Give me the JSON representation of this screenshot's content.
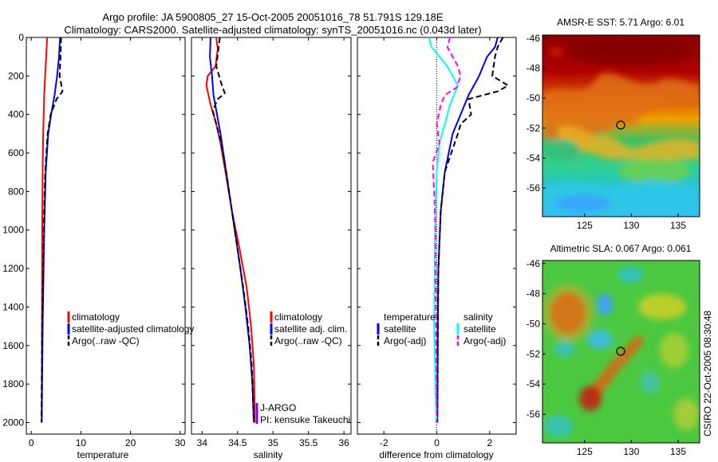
{
  "title": {
    "line1": "Argo profile: JA 5900805_27 15-Oct-2005 20051016_78 51.791S 129.18E",
    "line2": "Climatology: CARS2000. Satellite-adjusted climatology: synTS_20051016.nc (0.043d later)"
  },
  "chart_data": [
    {
      "type": "line",
      "xlabel": "temperature",
      "ylabel": "",
      "xlim": [
        -1,
        31
      ],
      "ylim": [
        2060,
        0
      ],
      "y_reversed": true,
      "xticks": [
        0,
        10,
        20,
        30
      ],
      "yticks": [
        0,
        200,
        400,
        600,
        800,
        1000,
        1200,
        1400,
        1600,
        1800,
        2000
      ],
      "legend": [
        "climatology",
        "satellite-adjusted climatology",
        "Argo(..raw -QC)"
      ],
      "series": [
        {
          "name": "climatology",
          "color": "#ff0000",
          "dash": "solid",
          "depth": [
            0,
            100,
            200,
            300,
            400,
            500,
            700,
            1000,
            1500,
            2000
          ],
          "values": [
            3.2,
            3.0,
            2.8,
            2.6,
            2.5,
            2.4,
            2.3,
            2.2,
            2.15,
            2.1
          ]
        },
        {
          "name": "satellite-adjusted climatology",
          "color": "#0000ff",
          "dash": "solid",
          "depth": [
            0,
            100,
            200,
            300,
            400,
            500,
            700,
            1000,
            1500,
            2000
          ],
          "values": [
            5.8,
            5.6,
            5.2,
            4.7,
            4.0,
            3.4,
            2.9,
            2.6,
            2.3,
            2.1
          ]
        },
        {
          "name": "Argo(..raw -QC)",
          "color": "#000000",
          "dash": "dashed",
          "depth": [
            0,
            100,
            200,
            280,
            320,
            400,
            500,
            700,
            1000,
            1500,
            2000
          ],
          "values": [
            6.0,
            5.9,
            5.7,
            6.3,
            5.1,
            3.9,
            3.3,
            2.8,
            2.5,
            2.2,
            2.05
          ]
        }
      ]
    },
    {
      "type": "line",
      "xlabel": "salinity",
      "ylabel": "",
      "xlim": [
        33.85,
        36.1
      ],
      "ylim": [
        2060,
        0
      ],
      "y_reversed": true,
      "xticks": [
        34,
        34.5,
        35,
        35.5,
        36
      ],
      "yticks": [
        0,
        200,
        400,
        600,
        800,
        1000,
        1200,
        1400,
        1600,
        1800,
        2000
      ],
      "legend": [
        "climatology",
        "satellite adj. clim.",
        "Argo(..raw -QC)"
      ],
      "series": [
        {
          "name": "climatology",
          "color": "#ff0000",
          "dash": "solid",
          "depth": [
            0,
            60,
            150,
            200,
            250,
            350,
            450,
            550,
            700,
            900,
            1100,
            1300,
            1500,
            1700,
            1900,
            2000
          ],
          "values": [
            34.2,
            34.22,
            34.19,
            34.08,
            34.06,
            34.12,
            34.2,
            34.26,
            34.33,
            34.42,
            34.53,
            34.63,
            34.69,
            34.73,
            34.74,
            34.74
          ]
        },
        {
          "name": "satellite adj. clim.",
          "color": "#0000ff",
          "dash": "solid",
          "depth": [
            0,
            100,
            200,
            300,
            400,
            500,
            600,
            800,
            1000,
            1200,
            1400,
            1600,
            1800,
            2000
          ],
          "values": [
            34.12,
            34.11,
            34.14,
            34.16,
            34.21,
            34.26,
            34.3,
            34.38,
            34.46,
            34.54,
            34.61,
            34.67,
            34.71,
            34.73
          ]
        },
        {
          "name": "Argo(..raw -QC)",
          "color": "#000000",
          "dash": "dashed",
          "depth": [
            0,
            60,
            150,
            250,
            290,
            320,
            380,
            450,
            550,
            700,
            900,
            1100,
            1300,
            1500,
            1700,
            1900,
            2000
          ],
          "values": [
            34.25,
            34.23,
            34.2,
            34.28,
            34.32,
            34.22,
            34.15,
            34.2,
            34.27,
            34.34,
            34.42,
            34.5,
            34.58,
            34.65,
            34.7,
            34.72,
            34.73
          ]
        }
      ],
      "annotations": [
        "J-ARGO",
        "PI: kensuke Takeuchi"
      ]
    },
    {
      "type": "line",
      "xlabel": "difference from climatology",
      "ylabel": "",
      "xlim": [
        -3,
        3
      ],
      "ylim": [
        2060,
        0
      ],
      "y_reversed": true,
      "xticks": [
        -2,
        0,
        2
      ],
      "yticks": [
        0,
        200,
        400,
        600,
        800,
        1000,
        1200,
        1400,
        1600,
        1800,
        2000
      ],
      "reference_line_x": 0,
      "legend_headers": [
        "temperature",
        "salinity"
      ],
      "legend": [
        "satellite",
        "Argo(-adj)",
        "satellite",
        "Argo(-adj)"
      ],
      "series": [
        {
          "name": "satellite",
          "group": "temperature",
          "color": "#0000ff",
          "dash": "solid",
          "depth": [
            0,
            50,
            100,
            200,
            300,
            400,
            500,
            700,
            900,
            1200,
            1500,
            1800,
            2000
          ],
          "values": [
            2.3,
            2.2,
            1.9,
            1.6,
            1.2,
            0.9,
            0.6,
            0.3,
            0.15,
            0.06,
            0.04,
            0.03,
            0.02
          ]
        },
        {
          "name": "Argo(-adj)",
          "group": "temperature",
          "color": "#000000",
          "dash": "dashed",
          "depth": [
            0,
            50,
            100,
            200,
            250,
            280,
            320,
            400,
            450,
            500,
            600,
            700,
            900,
            1200,
            1500,
            1800,
            2000
          ],
          "values": [
            2.5,
            2.3,
            2.2,
            2.1,
            2.7,
            2.3,
            1.2,
            1.3,
            0.9,
            0.8,
            0.55,
            0.3,
            0.15,
            0.06,
            0.04,
            0.03,
            0.02
          ]
        },
        {
          "name": "satellite",
          "group": "salinity",
          "color": "#00ffff",
          "dash": "solid",
          "depth": [
            0,
            50,
            150,
            250,
            350,
            450,
            550,
            700,
            900,
            1200,
            1500,
            1800,
            2000
          ],
          "values": [
            -0.3,
            -0.2,
            0.4,
            0.8,
            0.5,
            0.3,
            0.1,
            0.0,
            -0.05,
            -0.08,
            -0.1,
            -0.05,
            -0.01
          ]
        },
        {
          "name": "Argo(-adj)",
          "group": "salinity",
          "color": "#ff00ff",
          "dash": "dashed",
          "depth": [
            0,
            50,
            100,
            150,
            200,
            260,
            300,
            350,
            450,
            550,
            650,
            800,
            1000,
            1200,
            1500,
            1800,
            2000
          ],
          "values": [
            0.5,
            0.4,
            0.6,
            0.8,
            0.9,
            0.75,
            0.3,
            0.15,
            0.0,
            0.1,
            -0.15,
            -0.1,
            -0.05,
            -0.05,
            -0.03,
            -0.01,
            0.0
          ]
        }
      ]
    },
    {
      "type": "heatmap",
      "title": "AMSR-E SST: 5.71 Argo: 6.01",
      "xlim": [
        120.5,
        137.3
      ],
      "ylim": [
        -57.9,
        -45.8
      ],
      "xticks": [
        125,
        130,
        135
      ],
      "yticks": [
        -46,
        -48,
        -50,
        -52,
        -54,
        -56
      ],
      "marker": {
        "lon": 129.18,
        "lat": -51.791
      },
      "colormap": "jet"
    },
    {
      "type": "heatmap",
      "title": "Altimetric SLA: 0.067 Argo: 0.061",
      "xlim": [
        120.5,
        137.3
      ],
      "ylim": [
        -57.9,
        -45.8
      ],
      "xticks": [
        125,
        130,
        135
      ],
      "yticks": [
        -46,
        -48,
        -50,
        -52,
        -54,
        -56
      ],
      "marker": {
        "lon": 129.18,
        "lat": -51.791
      },
      "colormap": "jet"
    }
  ],
  "footer": {
    "credit": "CSIRO 22-Oct-2005 08:30:48"
  }
}
